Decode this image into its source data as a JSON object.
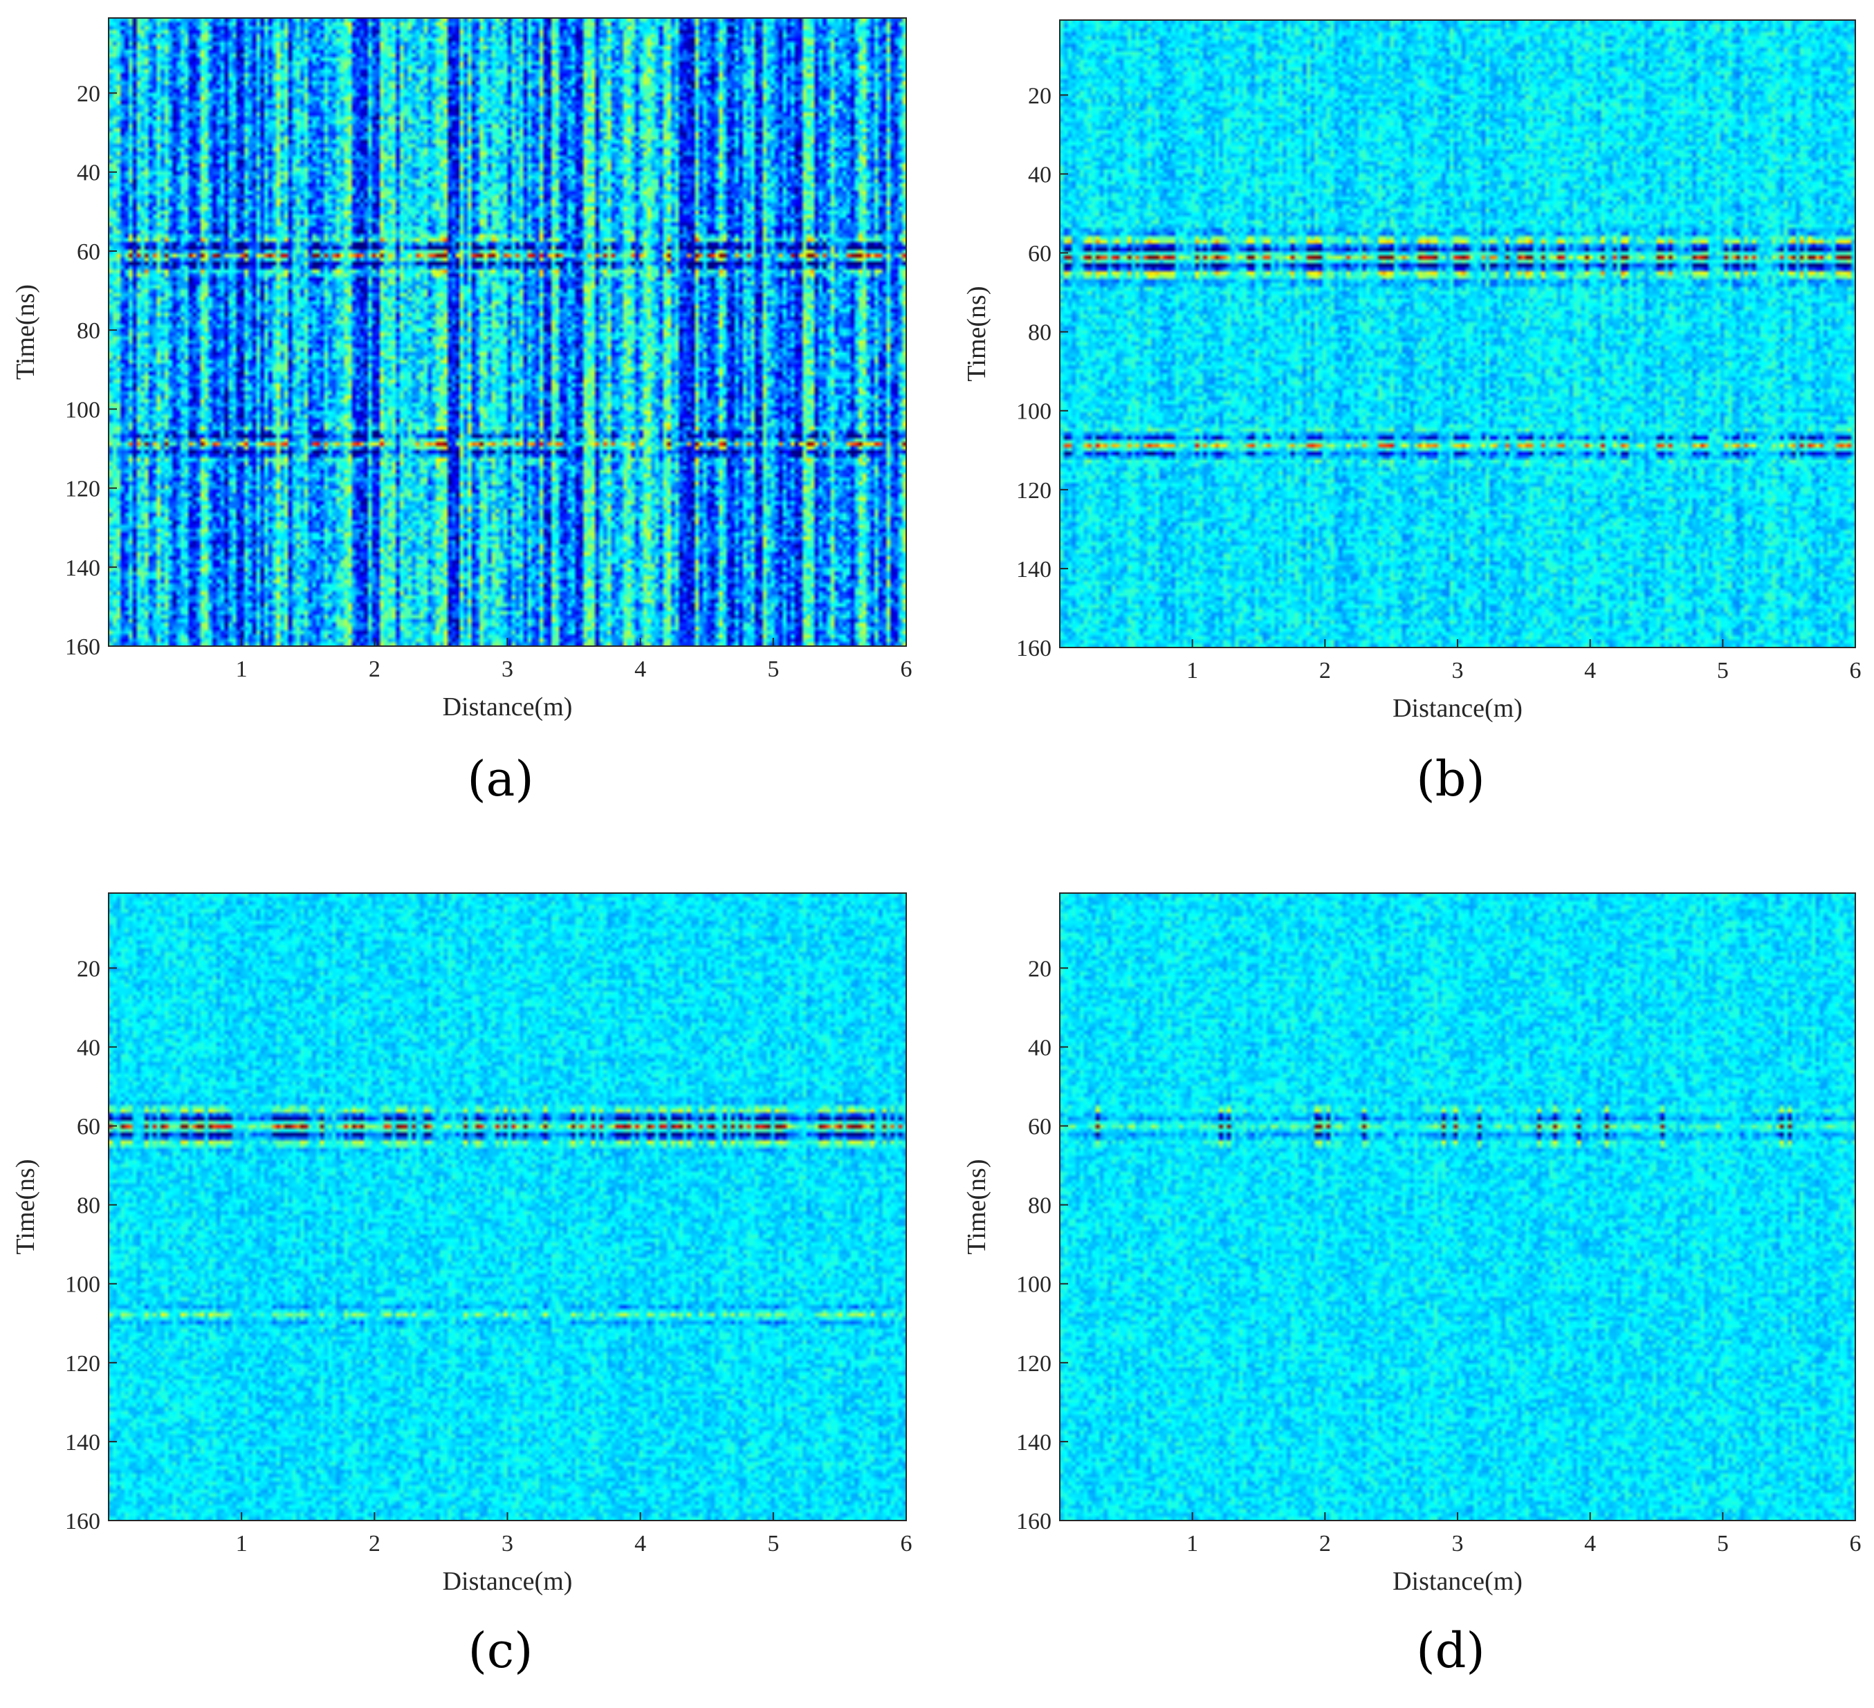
{
  "colors": {
    "background": "#00ffff",
    "axis": "#262626",
    "colormap": "jet"
  },
  "chart_data": [
    {
      "type": "heatmap",
      "panel_label": "(a)",
      "xlabel": "Distance(m)",
      "ylabel": "Time(ns)",
      "xlim": [
        0,
        6
      ],
      "ylim": [
        160,
        1
      ],
      "xticks": [
        "1",
        "2",
        "3",
        "4",
        "5",
        "6"
      ],
      "yticks": [
        "20",
        "40",
        "60",
        "80",
        "100",
        "120",
        "140",
        "160"
      ],
      "colormap": "jet",
      "background_level": 0.3,
      "noise_level": 0.22,
      "streak_level": 0.5,
      "reflections": [
        {
          "time_ns": 61,
          "width_ns": 5,
          "amplitude": 1.0
        },
        {
          "time_ns": 109,
          "width_ns": 4,
          "amplitude": 0.8
        }
      ]
    },
    {
      "type": "heatmap",
      "panel_label": "(b)",
      "xlabel": "Distance(m)",
      "ylabel": "Time(ns)",
      "xlim": [
        0,
        6
      ],
      "ylim": [
        160,
        1
      ],
      "xticks": [
        "1",
        "2",
        "3",
        "4",
        "5",
        "6"
      ],
      "yticks": [
        "20",
        "40",
        "60",
        "80",
        "100",
        "120",
        "140",
        "160"
      ],
      "colormap": "jet",
      "background_level": 0.35,
      "noise_level": 0.12,
      "streak_level": 0.1,
      "reflections": [
        {
          "time_ns": 61,
          "width_ns": 6,
          "amplitude": 1.0
        },
        {
          "time_ns": 109,
          "width_ns": 4,
          "amplitude": 0.65
        }
      ]
    },
    {
      "type": "heatmap",
      "panel_label": "(c)",
      "xlabel": "Distance(m)",
      "ylabel": "Time(ns)",
      "xlim": [
        0,
        6
      ],
      "ylim": [
        160,
        1
      ],
      "xticks": [
        "1",
        "2",
        "3",
        "4",
        "5",
        "6"
      ],
      "yticks": [
        "20",
        "40",
        "60",
        "80",
        "100",
        "120",
        "140",
        "160"
      ],
      "colormap": "jet",
      "background_level": 0.35,
      "noise_level": 0.1,
      "streak_level": 0.05,
      "reflections": [
        {
          "time_ns": 60,
          "width_ns": 5,
          "amplitude": 1.0
        },
        {
          "time_ns": 108,
          "width_ns": 3,
          "amplitude": 0.3
        }
      ]
    },
    {
      "type": "heatmap",
      "panel_label": "(d)",
      "xlabel": "Distance(m)",
      "ylabel": "Time(ns)",
      "xlim": [
        0,
        6
      ],
      "ylim": [
        160,
        1
      ],
      "xticks": [
        "1",
        "2",
        "3",
        "4",
        "5",
        "6"
      ],
      "yticks": [
        "20",
        "40",
        "60",
        "80",
        "100",
        "120",
        "140",
        "160"
      ],
      "colormap": "jet",
      "background_level": 0.35,
      "noise_level": 0.1,
      "streak_level": 0.05,
      "reflections": [
        {
          "time_ns": 60,
          "width_ns": 5,
          "amplitude": 0.9,
          "sparse": true
        }
      ]
    }
  ]
}
